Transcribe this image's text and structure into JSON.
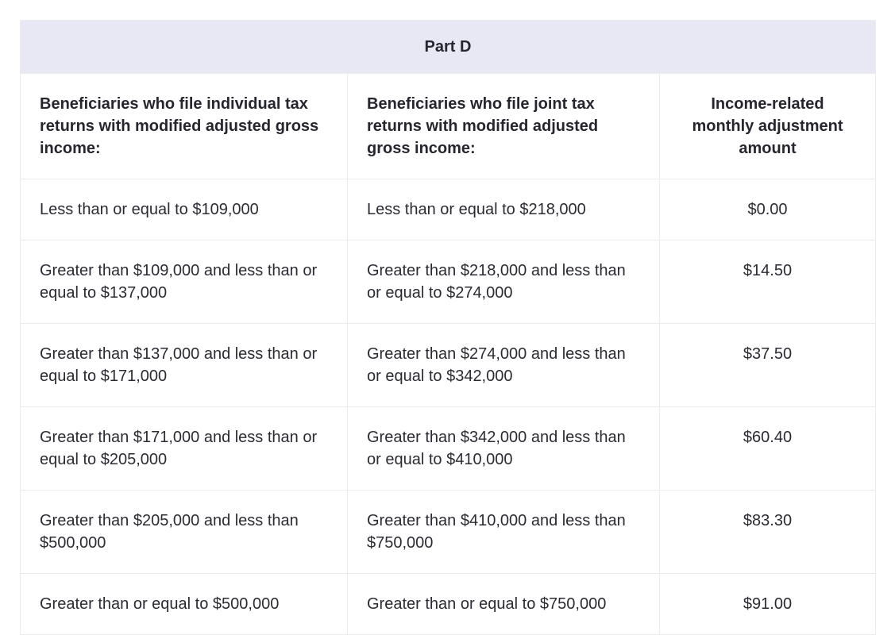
{
  "table": {
    "caption": "Part D",
    "columns": [
      {
        "label": "Beneficiaries who file individual tax returns with modified adjusted gross income:"
      },
      {
        "label": "Beneficiaries who file joint tax returns with modified adjusted gross income:"
      },
      {
        "label": "Income-related monthly adjustment amount"
      }
    ],
    "rows": [
      {
        "individual": "Less than or equal to $109,000",
        "joint": "Less than or equal to $218,000",
        "amount": "$0.00"
      },
      {
        "individual": "Greater than $109,000 and less than or equal to $137,000",
        "joint": "Greater than $218,000 and less than or equal to $274,000",
        "amount": "$14.50"
      },
      {
        "individual": "Greater than $137,000 and less than or equal to $171,000",
        "joint": "Greater than $274,000 and less than or equal to $342,000",
        "amount": "$37.50"
      },
      {
        "individual": "Greater than $171,000 and less than or equal to $205,000",
        "joint": "Greater than $342,000 and less than or equal to $410,000",
        "amount": "$60.40"
      },
      {
        "individual": "Greater than $205,000 and less than $500,000",
        "joint": "Greater than $410,000 and less than $750,000",
        "amount": "$83.30"
      },
      {
        "individual": "Greater than or equal to $500,000",
        "joint": "Greater than or equal to $750,000",
        "amount": "$91.00"
      }
    ],
    "colors": {
      "caption_background": "#e7e8f4",
      "border": "#ebebee",
      "text": "#2b2b33",
      "header_text": "#26262e",
      "page_background": "#ffffff"
    }
  }
}
